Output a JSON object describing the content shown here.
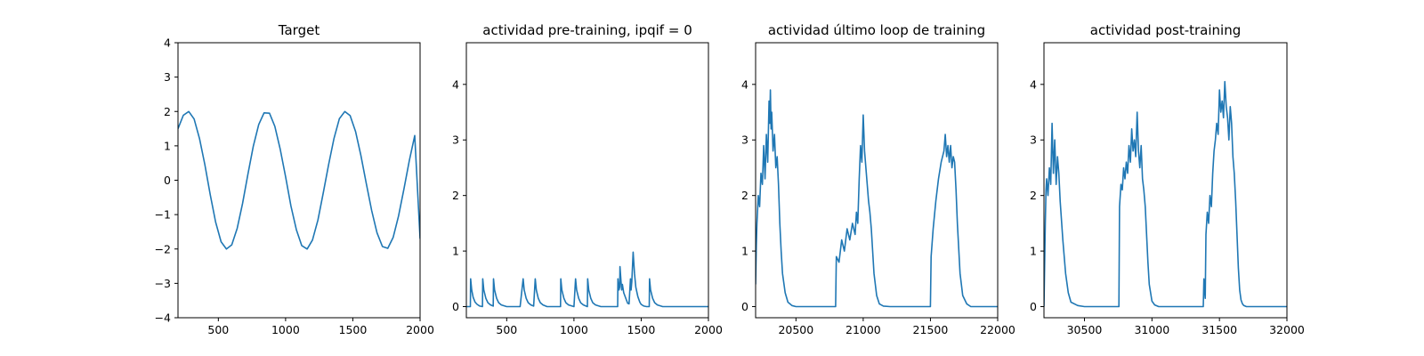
{
  "chart_data": [
    {
      "type": "line",
      "title": "Target",
      "xlim": [
        200,
        2000
      ],
      "ylim": [
        -4,
        4
      ],
      "xticks": [
        500,
        1000,
        1500,
        2000
      ],
      "yticks": [
        -4,
        -3,
        -2,
        -1,
        0,
        1,
        2,
        3,
        4
      ],
      "series": [
        {
          "x": [
            200,
            240,
            280,
            320,
            360,
            400,
            440,
            480,
            520,
            560,
            600,
            640,
            680,
            720,
            760,
            800,
            840,
            880,
            920,
            960,
            1000,
            1040,
            1080,
            1120,
            1160,
            1200,
            1240,
            1280,
            1320,
            1360,
            1400,
            1440,
            1480,
            1520,
            1560,
            1600,
            1640,
            1680,
            1720,
            1760,
            1800,
            1840,
            1880,
            1920,
            1960,
            2000
          ],
          "y": [
            1.5,
            1.89,
            2.0,
            1.78,
            1.21,
            0.45,
            -0.43,
            -1.22,
            -1.79,
            -2.0,
            -1.88,
            -1.4,
            -0.68,
            0.18,
            0.99,
            1.62,
            1.96,
            1.95,
            1.57,
            0.91,
            0.1,
            -0.75,
            -1.44,
            -1.9,
            -2.0,
            -1.74,
            -1.16,
            -0.37,
            0.45,
            1.22,
            1.79,
            2.0,
            1.88,
            1.42,
            0.72,
            -0.1,
            -0.88,
            -1.53,
            -1.93,
            -1.98,
            -1.66,
            -1.04,
            -0.25,
            0.57,
            1.3,
            -1.7
          ]
        }
      ]
    },
    {
      "type": "line",
      "title": "actividad pre-training, ipqif = 0",
      "xlim": [
        200,
        2000
      ],
      "ylim": [
        -0.2,
        4.75
      ],
      "xticks": [
        500,
        1000,
        1500,
        2000
      ],
      "yticks": [
        0,
        1,
        2,
        3,
        4
      ],
      "series": [
        {
          "x": [
            200,
            230,
            232,
            240,
            250,
            265,
            280,
            300,
            320,
            322,
            330,
            345,
            360,
            380,
            400,
            402,
            410,
            425,
            440,
            460,
            500,
            560,
            600,
            622,
            630,
            645,
            660,
            680,
            700,
            712,
            720,
            735,
            750,
            770,
            800,
            850,
            900,
            902,
            910,
            925,
            940,
            960,
            1000,
            1012,
            1020,
            1035,
            1050,
            1070,
            1100,
            1102,
            1110,
            1125,
            1140,
            1160,
            1200,
            1250,
            1300,
            1325,
            1327,
            1335,
            1340,
            1342,
            1350,
            1355,
            1360,
            1370,
            1390,
            1400,
            1410,
            1420,
            1425,
            1430,
            1440,
            1450,
            1460,
            1475,
            1490,
            1500,
            1520,
            1540,
            1560,
            1562,
            1570,
            1585,
            1600,
            1620,
            1660,
            1700,
            1800,
            1900,
            2000
          ],
          "y": [
            0,
            0,
            0.5,
            0.3,
            0.17,
            0.08,
            0.04,
            0.01,
            0,
            0.5,
            0.3,
            0.15,
            0.07,
            0.03,
            0.01,
            0.5,
            0.3,
            0.15,
            0.07,
            0.03,
            0,
            0,
            0,
            0.5,
            0.3,
            0.15,
            0.07,
            0.03,
            0.01,
            0.5,
            0.3,
            0.15,
            0.07,
            0.03,
            0,
            0,
            0,
            0.5,
            0.3,
            0.15,
            0.07,
            0.03,
            0,
            0.5,
            0.3,
            0.15,
            0.07,
            0.03,
            0,
            0.5,
            0.3,
            0.15,
            0.07,
            0.03,
            0,
            0,
            0,
            0,
            0.5,
            0.3,
            0.35,
            0.72,
            0.45,
            0.3,
            0.4,
            0.25,
            0.12,
            0.06,
            0.05,
            0.5,
            0.3,
            0.45,
            0.98,
            0.6,
            0.35,
            0.18,
            0.08,
            0.04,
            0.01,
            0,
            0,
            0.5,
            0.3,
            0.15,
            0.07,
            0.03,
            0,
            0,
            0,
            0,
            0
          ]
        }
      ]
    },
    {
      "type": "line",
      "title": "actividad último loop de training",
      "xlim": [
        20200,
        22000
      ],
      "ylim": [
        -0.2,
        4.75
      ],
      "xticks": [
        20500,
        21000,
        21500,
        22000
      ],
      "yticks": [
        0,
        1,
        2,
        3,
        4
      ],
      "series": [
        {
          "x": [
            20200,
            20205,
            20210,
            20220,
            20230,
            20240,
            20250,
            20260,
            20270,
            20280,
            20290,
            20300,
            20305,
            20310,
            20315,
            20320,
            20330,
            20340,
            20350,
            20360,
            20370,
            20380,
            20390,
            20400,
            20420,
            20440,
            20470,
            20500,
            20600,
            20700,
            20795,
            20800,
            20820,
            20840,
            20860,
            20880,
            20900,
            20920,
            20940,
            20950,
            20960,
            20970,
            20980,
            20990,
            21000,
            21010,
            21020,
            21030,
            21040,
            21050,
            21060,
            21070,
            21080,
            21100,
            21120,
            21150,
            21200,
            21300,
            21400,
            21500,
            21505,
            21520,
            21540,
            21560,
            21580,
            21600,
            21610,
            21620,
            21630,
            21640,
            21650,
            21660,
            21670,
            21680,
            21690,
            21700,
            21720,
            21740,
            21770,
            21800,
            21900,
            22000
          ],
          "y": [
            0.4,
            1.1,
            1.5,
            2.0,
            1.8,
            2.4,
            2.2,
            2.9,
            2.3,
            3.1,
            2.6,
            3.7,
            3.3,
            3.9,
            3.2,
            3.5,
            2.8,
            3.1,
            2.5,
            2.7,
            2.2,
            1.5,
            1.0,
            0.6,
            0.25,
            0.08,
            0.02,
            0,
            0,
            0,
            0,
            0.9,
            0.8,
            1.2,
            1.0,
            1.4,
            1.2,
            1.5,
            1.3,
            1.7,
            1.5,
            2.3,
            2.9,
            2.6,
            3.45,
            2.8,
            2.5,
            2.2,
            1.9,
            1.7,
            1.4,
            1.0,
            0.6,
            0.2,
            0.05,
            0.01,
            0,
            0,
            0,
            0,
            0.9,
            1.4,
            1.9,
            2.3,
            2.6,
            2.8,
            3.1,
            2.7,
            2.9,
            2.6,
            2.9,
            2.5,
            2.7,
            2.6,
            2.1,
            1.5,
            0.6,
            0.2,
            0.05,
            0,
            0,
            0
          ]
        }
      ]
    },
    {
      "type": "line",
      "title": "actividad post-training",
      "xlim": [
        30200,
        32000
      ],
      "ylim": [
        -0.2,
        4.75
      ],
      "xticks": [
        30500,
        31000,
        31500,
        32000
      ],
      "yticks": [
        0,
        1,
        2,
        3,
        4
      ],
      "series": [
        {
          "x": [
            30200,
            30210,
            30215,
            30220,
            30230,
            30240,
            30250,
            30260,
            30270,
            30280,
            30290,
            30300,
            30310,
            30320,
            30340,
            30360,
            30380,
            30400,
            30450,
            30500,
            30600,
            30700,
            30755,
            30760,
            30770,
            30780,
            30790,
            30800,
            30810,
            30820,
            30830,
            30840,
            30850,
            30860,
            30870,
            30880,
            30890,
            30900,
            30910,
            30920,
            30930,
            30940,
            30950,
            30960,
            30970,
            30980,
            31000,
            31020,
            31050,
            31100,
            31200,
            31300,
            31380,
            31385,
            31390,
            31395,
            31400,
            31410,
            31420,
            31430,
            31440,
            31450,
            31460,
            31470,
            31480,
            31490,
            31500,
            31510,
            31520,
            31530,
            31540,
            31550,
            31560,
            31570,
            31580,
            31590,
            31600,
            31610,
            31620,
            31630,
            31640,
            31650,
            31660,
            31670,
            31680,
            31700,
            31720,
            31750,
            31800,
            31900,
            32000
          ],
          "y": [
            0,
            1.5,
            2.1,
            2.3,
            2.0,
            2.5,
            2.2,
            3.3,
            2.4,
            3.0,
            2.2,
            2.7,
            2.4,
            1.9,
            1.2,
            0.6,
            0.25,
            0.08,
            0.02,
            0,
            0,
            0,
            0,
            1.8,
            2.2,
            2.1,
            2.5,
            2.3,
            2.6,
            2.4,
            2.9,
            2.6,
            3.2,
            2.8,
            3.0,
            2.7,
            3.5,
            2.8,
            2.5,
            2.9,
            2.3,
            2.1,
            1.8,
            1.3,
            0.8,
            0.4,
            0.1,
            0.03,
            0,
            0,
            0,
            0,
            0,
            0.5,
            0.3,
            0.15,
            1.3,
            1.7,
            1.5,
            2.0,
            1.8,
            2.4,
            2.8,
            3.0,
            3.3,
            3.1,
            3.9,
            3.5,
            3.7,
            3.4,
            4.05,
            3.6,
            3.4,
            3.0,
            3.6,
            3.3,
            2.7,
            2.4,
            1.9,
            1.3,
            0.7,
            0.3,
            0.12,
            0.05,
            0.02,
            0,
            0,
            0,
            0,
            0,
            0
          ]
        }
      ]
    }
  ]
}
